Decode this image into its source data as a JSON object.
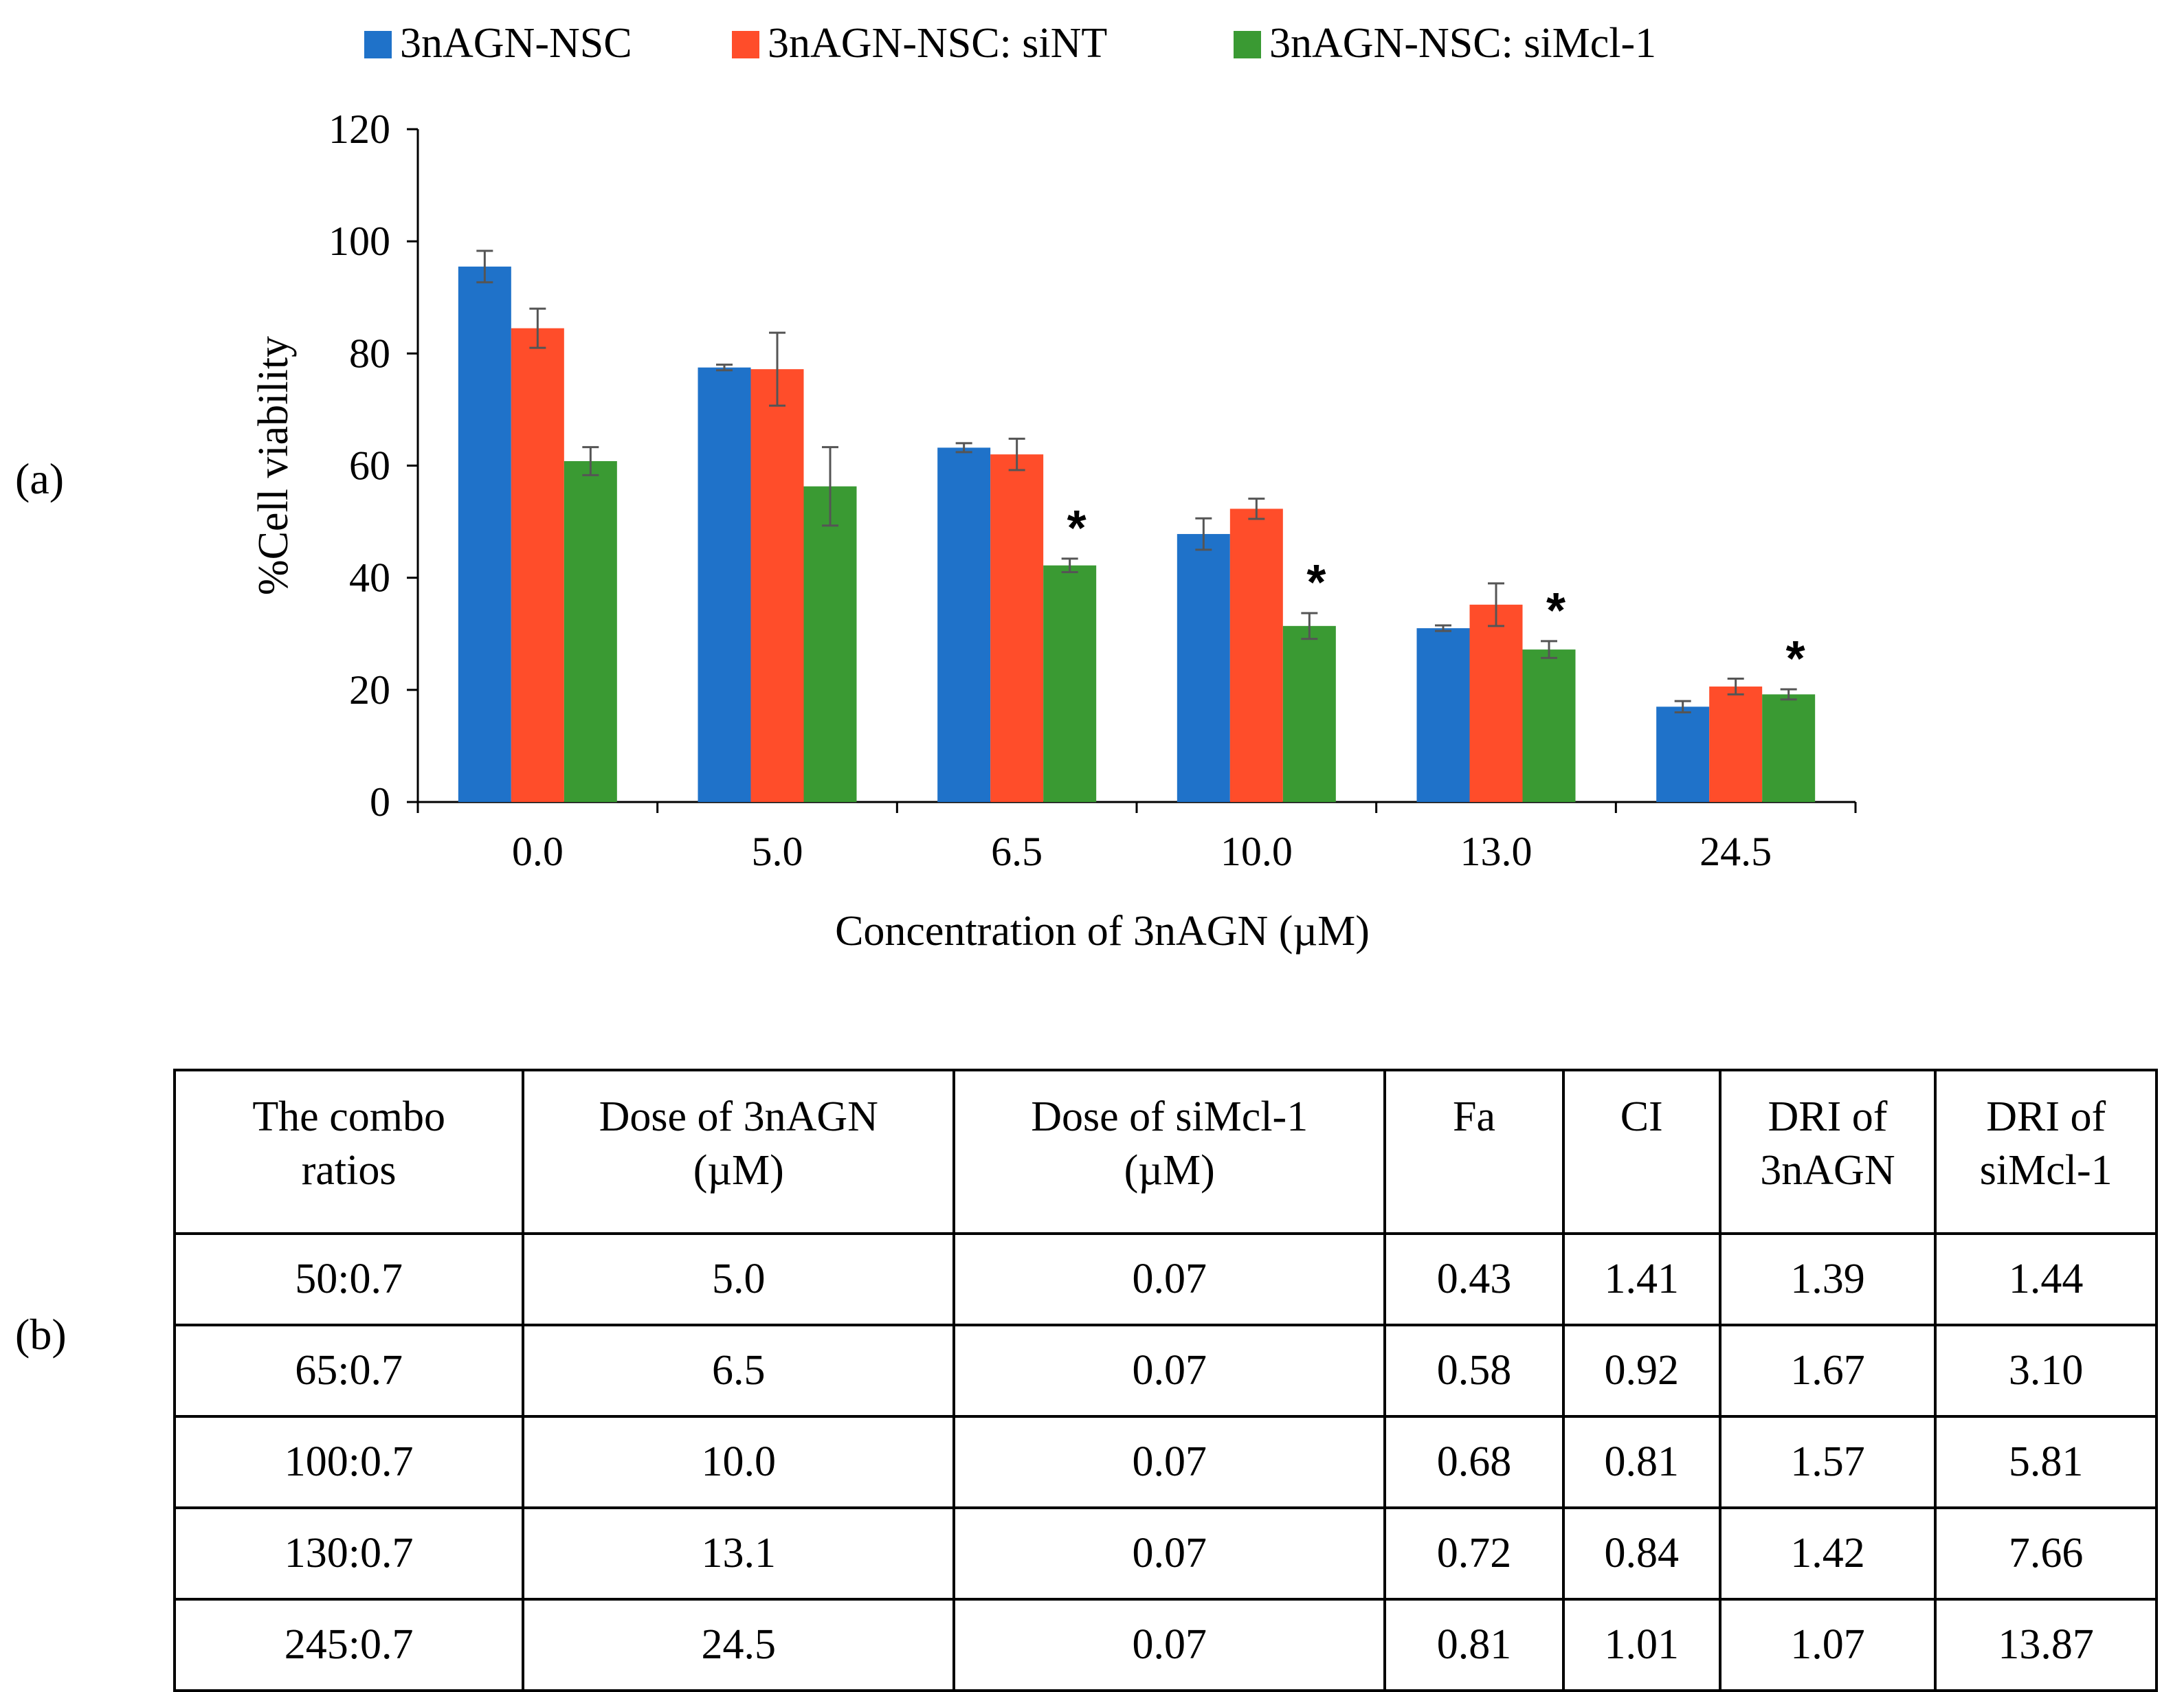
{
  "panels": {
    "a": "(a)",
    "b": "(b)"
  },
  "chart_data": {
    "type": "bar",
    "title": "",
    "xlabel": "Concentration of 3nAGN (µM)",
    "ylabel": "%Cell viability",
    "ylim": [
      0,
      120
    ],
    "yticks": [
      0,
      20,
      40,
      60,
      80,
      100,
      120
    ],
    "categories": [
      "0.0",
      "5.0",
      "6.5",
      "10.0",
      "13.0",
      "24.5"
    ],
    "legend_position": "top",
    "series": [
      {
        "name": "3nAGN-NSC",
        "color": "#1f72c9",
        "values": [
          95.5,
          77.5,
          63.2,
          47.8,
          31.0,
          17.0
        ],
        "errors": [
          2.8,
          0.5,
          0.8,
          2.8,
          0.5,
          1.0
        ]
      },
      {
        "name": "3nAGN-NSC: siNT",
        "color": "#ff4d2a",
        "values": [
          84.5,
          77.2,
          62.0,
          52.3,
          35.2,
          20.6
        ],
        "errors": [
          3.5,
          6.5,
          2.8,
          1.8,
          3.8,
          1.4
        ]
      },
      {
        "name": "3nAGN-NSC: siMcl-1",
        "color": "#3a9a33",
        "values": [
          60.8,
          56.3,
          42.2,
          31.4,
          27.2,
          19.2
        ],
        "errors": [
          2.5,
          7.0,
          1.2,
          2.3,
          1.5,
          0.9
        ]
      }
    ],
    "significance": [
      {
        "category": "6.5",
        "series": "3nAGN-NSC: siMcl-1",
        "label": "*"
      },
      {
        "category": "10.0",
        "series": "3nAGN-NSC: siMcl-1",
        "label": "*"
      },
      {
        "category": "13.0",
        "series": "3nAGN-NSC: siMcl-1",
        "label": "*"
      },
      {
        "category": "24.5",
        "series": "3nAGN-NSC: siMcl-1",
        "label": "*"
      }
    ]
  },
  "table": {
    "headers": [
      [
        "The combo",
        "ratios"
      ],
      [
        "Dose of 3nAGN",
        "(µM)"
      ],
      [
        "Dose of siMcl-1",
        "(µM)"
      ],
      [
        "Fa"
      ],
      [
        "CI"
      ],
      [
        "DRI of",
        "3nAGN"
      ],
      [
        "DRI of",
        "siMcl-1"
      ]
    ],
    "rows": [
      [
        "50:0.7",
        "5.0",
        "0.07",
        "0.43",
        "1.41",
        "1.39",
        "1.44"
      ],
      [
        "65:0.7",
        "6.5",
        "0.07",
        "0.58",
        "0.92",
        "1.67",
        "3.10"
      ],
      [
        "100:0.7",
        "10.0",
        "0.07",
        "0.68",
        "0.81",
        "1.57",
        "5.81"
      ],
      [
        "130:0.7",
        "13.1",
        "0.07",
        "0.72",
        "0.84",
        "1.42",
        "7.66"
      ],
      [
        "245:0.7",
        "24.5",
        "0.07",
        "0.81",
        "1.01",
        "1.07",
        "13.87"
      ]
    ]
  }
}
